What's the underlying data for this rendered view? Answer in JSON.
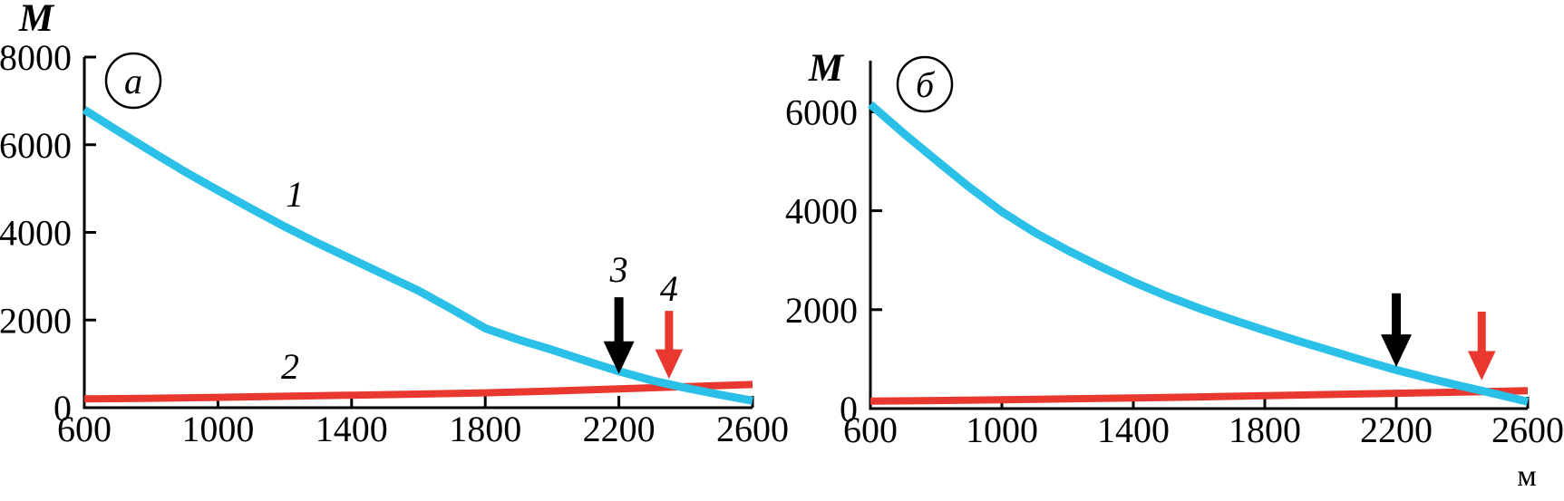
{
  "figure": {
    "background": "#ffffff",
    "axis_color": "#000000",
    "series1_color": "#2bc0e8",
    "series2_color": "#e8382f"
  },
  "chart_data": [
    {
      "type": "line",
      "panel_label": "a",
      "ylabel": "M",
      "xlabel": "",
      "xlim": [
        600,
        2600
      ],
      "ylim": [
        0,
        8000
      ],
      "x_ticks": [
        600,
        1000,
        1400,
        1800,
        2200,
        2600
      ],
      "y_ticks": [
        0,
        2000,
        4000,
        6000,
        8000
      ],
      "series": [
        {
          "name": "1",
          "color": "#2bc0e8",
          "width": 9,
          "x": [
            600,
            700,
            800,
            900,
            1000,
            1100,
            1200,
            1300,
            1400,
            1500,
            1600,
            1700,
            1800,
            1900,
            2000,
            2100,
            2200,
            2300,
            2400,
            2500,
            2600
          ],
          "values": [
            6800,
            6320,
            5850,
            5390,
            4960,
            4540,
            4130,
            3750,
            3390,
            3030,
            2670,
            2250,
            1810,
            1550,
            1320,
            1070,
            830,
            620,
            450,
            300,
            160
          ],
          "label": {
            "text": "1",
            "x": 1230,
            "y": 4590
          }
        },
        {
          "name": "2",
          "color": "#e8382f",
          "width": 8,
          "x": [
            600,
            800,
            1000,
            1200,
            1400,
            1600,
            1800,
            2000,
            2200,
            2400,
            2600
          ],
          "values": [
            200,
            215,
            235,
            260,
            285,
            310,
            340,
            380,
            430,
            480,
            530
          ],
          "label": {
            "text": "2",
            "x": 1216,
            "y": 660
          }
        }
      ],
      "arrows": [
        {
          "label": "3",
          "color": "#000000",
          "x": 2200,
          "y_tail": 2520,
          "y_tip": 770,
          "label_y": 2870
        },
        {
          "label": "4",
          "color": "#e8382f",
          "x": 2350,
          "y_tail": 2210,
          "y_tip": 660,
          "label_y": 2440
        }
      ]
    },
    {
      "type": "line",
      "panel_label": "б",
      "ylabel": "M",
      "xlabel": "м",
      "xlim": [
        600,
        2600
      ],
      "ylim": [
        0,
        7000
      ],
      "x_ticks": [
        600,
        1000,
        1400,
        1800,
        2200,
        2600
      ],
      "y_ticks": [
        0,
        2000,
        4000,
        6000
      ],
      "series": [
        {
          "name": "1",
          "color": "#2bc0e8",
          "width": 9,
          "x": [
            600,
            700,
            800,
            900,
            1000,
            1100,
            1200,
            1300,
            1400,
            1500,
            1600,
            1700,
            1800,
            1900,
            2000,
            2100,
            2200,
            2300,
            2400,
            2500,
            2600
          ],
          "values": [
            6150,
            5570,
            5020,
            4480,
            3980,
            3560,
            3200,
            2870,
            2560,
            2280,
            2030,
            1800,
            1580,
            1370,
            1170,
            970,
            780,
            610,
            450,
            300,
            140
          ],
          "label": null
        },
        {
          "name": "2",
          "color": "#e8382f",
          "width": 8,
          "x": [
            600,
            800,
            1000,
            1200,
            1400,
            1600,
            1800,
            2000,
            2200,
            2400,
            2600
          ],
          "values": [
            150,
            163,
            178,
            196,
            215,
            237,
            260,
            285,
            310,
            335,
            360
          ],
          "label": null
        }
      ],
      "arrows": [
        {
          "label": "",
          "color": "#000000",
          "x": 2200,
          "y_tail": 2330,
          "y_tip": 840,
          "label_y": 0
        },
        {
          "label": "",
          "color": "#e8382f",
          "x": 2460,
          "y_tail": 1960,
          "y_tip": 570,
          "label_y": 0
        }
      ]
    }
  ]
}
